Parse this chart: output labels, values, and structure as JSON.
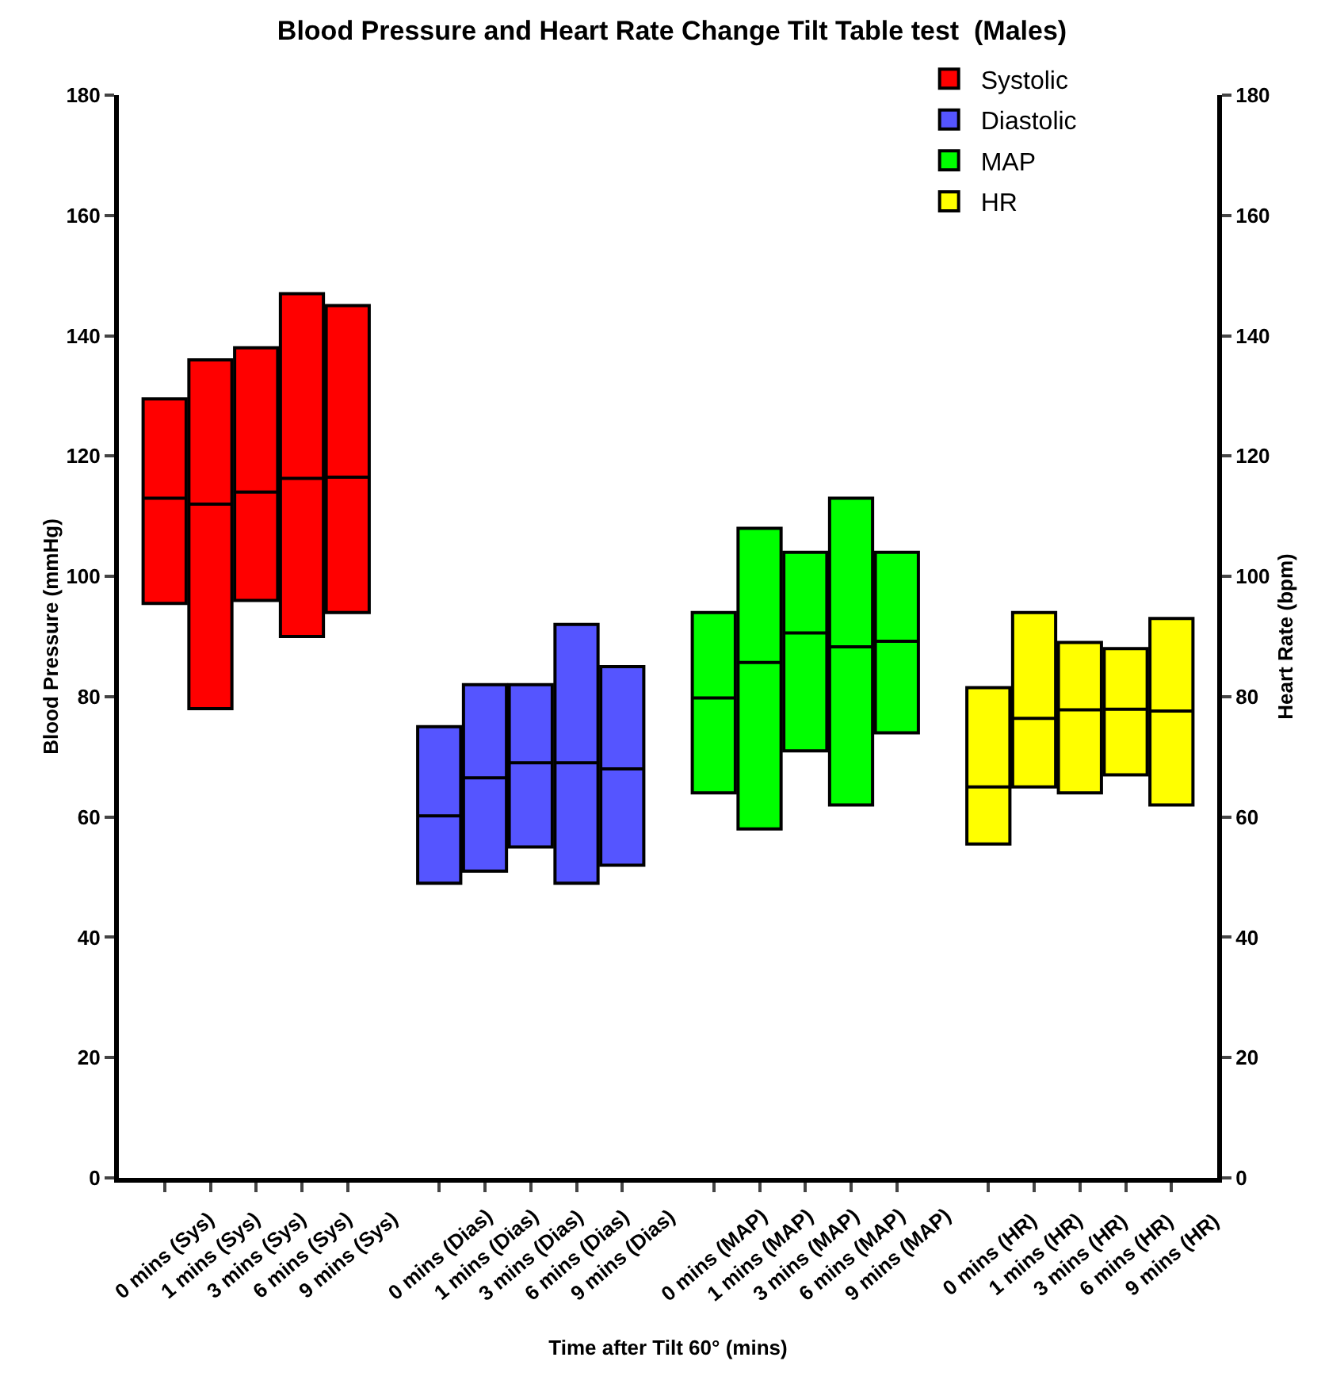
{
  "chart_data": {
    "type": "box",
    "title": "Blood Pressure and Heart Rate Change Tilt Table test  (Males)",
    "xlabel": "Time after Tilt 60° (mins)",
    "ylabel": "Blood Pressure (mmHg)",
    "y2label": "Heart Rate (bpm)",
    "categories": [
      "0 mins (Sys)",
      "1 mins (Sys)",
      "3 mins (Sys)",
      "6 mins (Sys)",
      "9 mins (Sys)",
      "0 mins (Dias)",
      "1 mins (Dias)",
      "3 mins (Dias)",
      "6 mins (Dias)",
      "9 mins (Dias)",
      "0 mins (MAP)",
      "1 mins (MAP)",
      "3 mins (MAP)",
      "6 mins (MAP)",
      "9 mins (MAP)",
      "0 mins (HR)",
      "1 mins (HR)",
      "3 mins (HR)",
      "6 mins (HR)",
      "9 mins (HR)"
    ],
    "series": [
      {
        "name": "Systolic",
        "color": "#ff0000",
        "boxes": [
          {
            "low": 95.5,
            "q1": 95.5,
            "median": 113,
            "q3": 129.5,
            "high": 129.5
          },
          {
            "low": 78,
            "q1": 78,
            "median": 112,
            "q3": 136,
            "high": 136
          },
          {
            "low": 96,
            "q1": 96,
            "median": 114,
            "q3": 138,
            "high": 138
          },
          {
            "low": 90,
            "q1": 90,
            "median": 116.3,
            "q3": 147,
            "high": 147
          },
          {
            "low": 94,
            "q1": 94,
            "median": 116.5,
            "q3": 145,
            "high": 145
          },
          null,
          null,
          null,
          null,
          null,
          null,
          null,
          null,
          null,
          null,
          null,
          null,
          null,
          null,
          null
        ]
      },
      {
        "name": "Diastolic",
        "color": "#5555ff",
        "boxes": [
          null,
          null,
          null,
          null,
          null,
          {
            "low": 49,
            "q1": 49,
            "median": 60.2,
            "q3": 75,
            "high": 75
          },
          {
            "low": 51,
            "q1": 51,
            "median": 66.5,
            "q3": 82,
            "high": 82
          },
          {
            "low": 55,
            "q1": 55,
            "median": 69,
            "q3": 82,
            "high": 82
          },
          {
            "low": 49,
            "q1": 49,
            "median": 69,
            "q3": 92,
            "high": 92
          },
          {
            "low": 52,
            "q1": 52,
            "median": 68,
            "q3": 85,
            "high": 85
          },
          null,
          null,
          null,
          null,
          null,
          null,
          null,
          null,
          null,
          null
        ]
      },
      {
        "name": "MAP",
        "color": "#00ff00",
        "boxes": [
          null,
          null,
          null,
          null,
          null,
          null,
          null,
          null,
          null,
          null,
          {
            "low": 64,
            "q1": 64,
            "median": 79.8,
            "q3": 94,
            "high": 94
          },
          {
            "low": 58,
            "q1": 58,
            "median": 85.7,
            "q3": 108,
            "high": 108
          },
          {
            "low": 71,
            "q1": 71,
            "median": 90.6,
            "q3": 104,
            "high": 104
          },
          {
            "low": 62,
            "q1": 62,
            "median": 88.3,
            "q3": 113,
            "high": 113
          },
          {
            "low": 74,
            "q1": 74,
            "median": 89.2,
            "q3": 104,
            "high": 104
          },
          null,
          null,
          null,
          null,
          null
        ]
      },
      {
        "name": "HR",
        "color": "#ffff00",
        "axis": "y2",
        "boxes": [
          null,
          null,
          null,
          null,
          null,
          null,
          null,
          null,
          null,
          null,
          null,
          null,
          null,
          null,
          null,
          {
            "low": 55.5,
            "q1": 55.5,
            "median": 65,
            "q3": 81.5,
            "high": 81.5
          },
          {
            "low": 65,
            "q1": 65,
            "median": 76.4,
            "q3": 94,
            "high": 94
          },
          {
            "low": 64,
            "q1": 64,
            "median": 77.8,
            "q3": 89,
            "high": 89
          },
          {
            "low": 67,
            "q1": 67,
            "median": 77.9,
            "q3": 88,
            "high": 88
          },
          {
            "low": 62,
            "q1": 62,
            "median": 77.6,
            "q3": 93,
            "high": 93
          }
        ]
      }
    ],
    "ylim": [
      0,
      180
    ],
    "yticks": [
      0,
      20,
      40,
      60,
      80,
      100,
      120,
      140,
      160,
      180
    ],
    "y2lim": [
      0,
      180
    ],
    "y2ticks": [
      0,
      20,
      40,
      60,
      80,
      100,
      120,
      140,
      160,
      180
    ],
    "grid": false,
    "legend": "top right"
  }
}
